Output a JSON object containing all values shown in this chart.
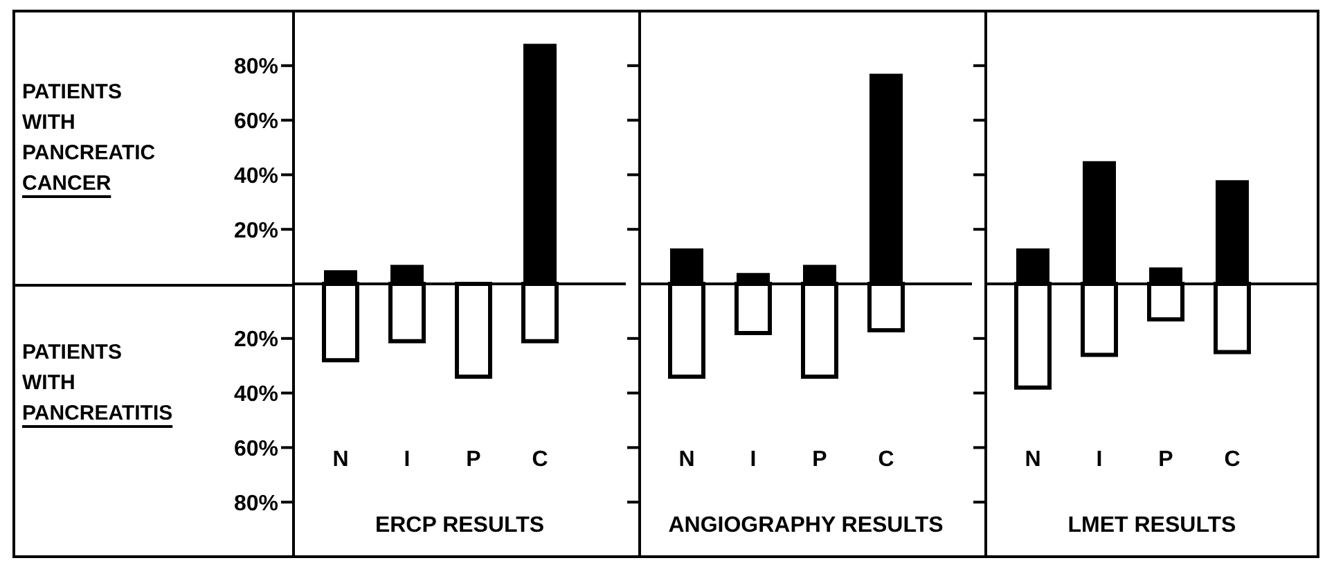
{
  "chart_data": [
    {
      "type": "bar",
      "stacked": true,
      "categories": [
        "N",
        "I",
        "P",
        "C"
      ],
      "xlabel": "ERCP RESULTS",
      "annotations": [
        "PATIENTS WITH PANCREATIC CANCER",
        "PATIENTS WITH PANCREATITIS"
      ],
      "ylim": [
        -100,
        100
      ],
      "yticks": [
        {
          "value": 80,
          "label": "80%"
        },
        {
          "value": 60,
          "label": "60%"
        },
        {
          "value": 40,
          "label": "40%"
        },
        {
          "value": 20,
          "label": "20%"
        },
        {
          "value": -20,
          "label": "20%"
        },
        {
          "value": -40,
          "label": "40%"
        },
        {
          "value": -60,
          "label": "60%"
        },
        {
          "value": -80,
          "label": "80%"
        }
      ],
      "series": [
        {
          "color": "#000000",
          "values": [
            5,
            7,
            0,
            88
          ]
        },
        {
          "color": "#ffffff",
          "values": [
            -28,
            -21,
            -34,
            -21
          ]
        }
      ]
    },
    {
      "type": "bar",
      "stacked": true,
      "categories": [
        "N",
        "I",
        "P",
        "C"
      ],
      "xlabel": "ANGIOGRAPHY RESULTS",
      "ylim": [
        -100,
        100
      ],
      "tick_labels": "x",
      "yticks": [
        {
          "value": 80,
          "label": null
        },
        {
          "value": 60,
          "label": null
        },
        {
          "value": 40,
          "label": null
        },
        {
          "value": 20,
          "label": null
        },
        {
          "value": -20,
          "label": null
        },
        {
          "value": -40,
          "label": null
        },
        {
          "value": -60,
          "label": null
        },
        {
          "value": -80,
          "label": null
        }
      ],
      "series": [
        {
          "color": "#000000",
          "values": [
            13,
            4,
            7,
            77
          ]
        },
        {
          "color": "#ffffff",
          "values": [
            -34,
            -18,
            -34,
            -17
          ]
        }
      ]
    },
    {
      "type": "bar",
      "stacked": true,
      "categories": [
        "N",
        "I",
        "P",
        "C"
      ],
      "xlabel": "LMET RESULTS",
      "ylim": [
        -100,
        100
      ],
      "tick_labels": "x",
      "yticks": [
        {
          "value": 80,
          "label": null
        },
        {
          "value": 60,
          "label": null
        },
        {
          "value": 40,
          "label": null
        },
        {
          "value": 20,
          "label": null
        },
        {
          "value": -20,
          "label": null
        },
        {
          "value": -40,
          "label": null
        },
        {
          "value": -60,
          "label": null
        },
        {
          "value": -80,
          "label": null
        }
      ],
      "series": [
        {
          "color": "#000000",
          "values": [
            13,
            45,
            6,
            38
          ]
        },
        {
          "color": "#ffffff",
          "values": [
            -38,
            -26,
            -13,
            -25
          ]
        }
      ]
    }
  ]
}
